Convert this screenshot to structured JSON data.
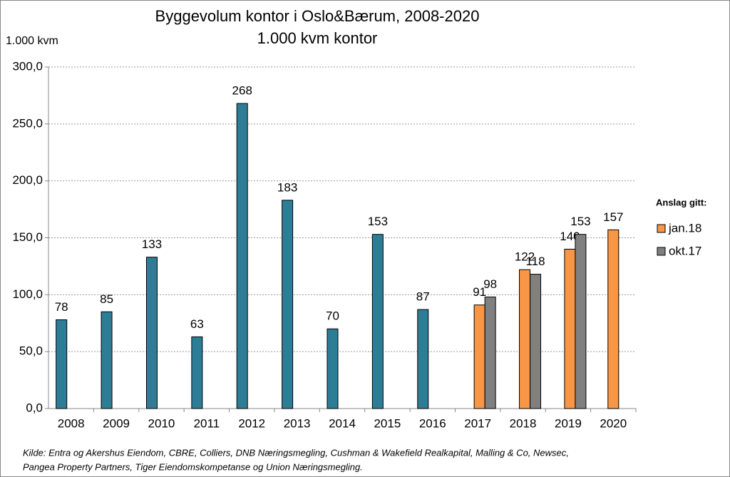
{
  "chart_data": {
    "type": "bar",
    "title": "Byggevolum kontor i Oslo&Bærum, 2008-2020",
    "subtitle": "1.000 kvm kontor",
    "y_label": "1.000 kvm",
    "legend_title": "Anslag gitt:",
    "legend": "right",
    "grid": true,
    "source": [
      "Kilde: Entra og Akershus Eiendom, CBRE, Colliers, DNB Næringsmegling, Cushman & Wakefield Realkapital, Malling & Co, Newsec,",
      "Pangea Property Partners, Tiger Eiendomskompetanse og Union Næringsmegling."
    ],
    "categories": [
      "2008",
      "2009",
      "2010",
      "2011",
      "2012",
      "2013",
      "2014",
      "2015",
      "2016",
      "2017",
      "2018",
      "2019",
      "2020"
    ],
    "series": [
      {
        "color": "#2e7d96",
        "values": [
          78,
          85,
          133,
          63,
          268,
          183,
          70,
          153,
          87,
          null,
          null,
          null,
          null
        ]
      },
      {
        "name": "jan.18",
        "color": "#f79646",
        "values": [
          null,
          null,
          null,
          null,
          null,
          null,
          null,
          null,
          null,
          91,
          122,
          140,
          157
        ]
      },
      {
        "name": "okt.17",
        "color": "#808080",
        "values": [
          null,
          null,
          null,
          null,
          null,
          null,
          null,
          null,
          null,
          98,
          118,
          153,
          null
        ]
      }
    ],
    "ylim": [
      0,
      300
    ],
    "yticks": [
      {
        "value": 0,
        "label": "0,0"
      },
      {
        "value": 50,
        "label": "50,0"
      },
      {
        "value": 100,
        "label": "100,0"
      },
      {
        "value": 150,
        "label": "150,0"
      },
      {
        "value": 200,
        "label": "200,0"
      },
      {
        "value": 250,
        "label": "250,0"
      },
      {
        "value": 300,
        "label": "300,0"
      }
    ]
  }
}
